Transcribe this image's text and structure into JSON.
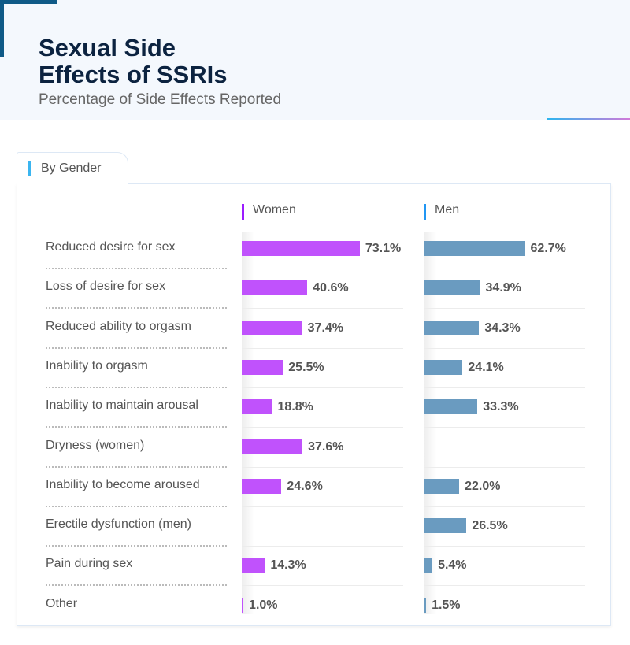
{
  "title_line1": "Sexual Side",
  "title_line2": "Effects of SSRIs",
  "subtitle": "Percentage of Side Effects Reported",
  "tab_label": "By Gender",
  "chart_data": {
    "type": "bar",
    "orientation": "horizontal",
    "categories": [
      "Reduced desire for sex",
      "Loss of desire for sex",
      "Reduced ability to orgasm",
      "Inability to orgasm",
      "Inability to maintain arousal",
      "Dryness (women)",
      "Inability to become aroused",
      "Erectile dysfunction (men)",
      "Pain during sex",
      "Other"
    ],
    "series": [
      {
        "name": "Women",
        "color": "#c052fc",
        "values": [
          73.1,
          40.6,
          37.4,
          25.5,
          18.8,
          37.6,
          24.6,
          null,
          14.3,
          1.0
        ],
        "labels": [
          "73.1%",
          "40.6%",
          "37.4%",
          "25.5%",
          "18.8%",
          "37.6%",
          "24.6%",
          null,
          "14.3%",
          "1.0%"
        ]
      },
      {
        "name": "Men",
        "color": "#6a9bc0",
        "values": [
          62.7,
          34.9,
          34.3,
          24.1,
          33.3,
          null,
          22.0,
          26.5,
          5.4,
          1.5
        ],
        "labels": [
          "62.7%",
          "34.9%",
          "34.3%",
          "24.1%",
          "33.3%",
          null,
          "22.0%",
          "26.5%",
          "5.4%",
          "1.5%"
        ]
      }
    ],
    "legend_colors": [
      "#9b1dff",
      "#2196f3"
    ],
    "unit": "%"
  }
}
